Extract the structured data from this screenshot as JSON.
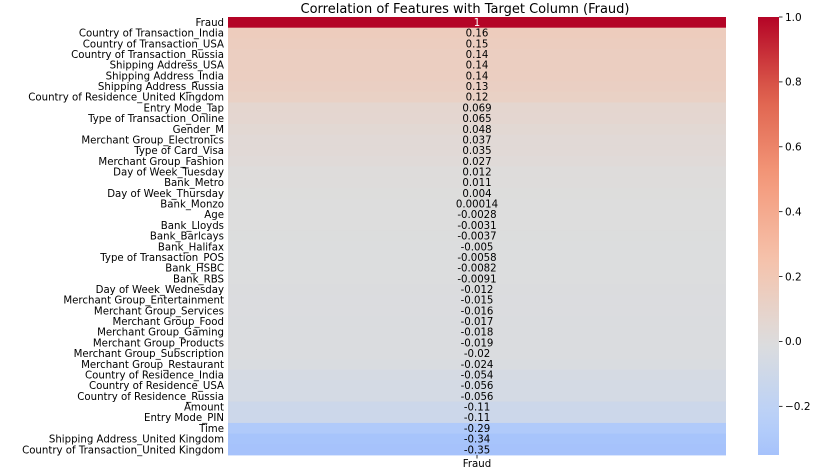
{
  "chart_data": {
    "type": "heatmap",
    "title": "Correlation of Features with Target Column (Fraud)",
    "column_label": "Fraud",
    "rows": [
      {
        "label": "Fraud",
        "value_label": "1",
        "value": 1.0
      },
      {
        "label": "Country of Transaction_India",
        "value_label": "0.16",
        "value": 0.16
      },
      {
        "label": "Country of Transaction_USA",
        "value_label": "0.15",
        "value": 0.15
      },
      {
        "label": "Country of Transaction_Russia",
        "value_label": "0.14",
        "value": 0.14
      },
      {
        "label": "Shipping Address_USA",
        "value_label": "0.14",
        "value": 0.14
      },
      {
        "label": "Shipping Address_India",
        "value_label": "0.14",
        "value": 0.14
      },
      {
        "label": "Shipping Address_Russia",
        "value_label": "0.13",
        "value": 0.13
      },
      {
        "label": "Country of Residence_United Kingdom",
        "value_label": "0.12",
        "value": 0.12
      },
      {
        "label": "Entry Mode_Tap",
        "value_label": "0.069",
        "value": 0.069
      },
      {
        "label": "Type of Transaction_Online",
        "value_label": "0.065",
        "value": 0.065
      },
      {
        "label": "Gender_M",
        "value_label": "0.048",
        "value": 0.048
      },
      {
        "label": "Merchant Group_Electronics",
        "value_label": "0.037",
        "value": 0.037
      },
      {
        "label": "Type of Card_Visa",
        "value_label": "0.035",
        "value": 0.035
      },
      {
        "label": "Merchant Group_Fashion",
        "value_label": "0.027",
        "value": 0.027
      },
      {
        "label": "Day of Week_Tuesday",
        "value_label": "0.012",
        "value": 0.012
      },
      {
        "label": "Bank_Metro",
        "value_label": "0.011",
        "value": 0.011
      },
      {
        "label": "Day of Week_Thursday",
        "value_label": "0.004",
        "value": 0.004
      },
      {
        "label": "Bank_Monzo",
        "value_label": "0.00014",
        "value": 0.00014
      },
      {
        "label": "Age",
        "value_label": "-0.0028",
        "value": -0.0028
      },
      {
        "label": "Bank_Lloyds",
        "value_label": "-0.0031",
        "value": -0.0031
      },
      {
        "label": "Bank_Barlcays",
        "value_label": "-0.0037",
        "value": -0.0037
      },
      {
        "label": "Bank_Halifax",
        "value_label": "-0.005",
        "value": -0.005
      },
      {
        "label": "Type of Transaction_POS",
        "value_label": "-0.0058",
        "value": -0.0058
      },
      {
        "label": "Bank_HSBC",
        "value_label": "-0.0082",
        "value": -0.0082
      },
      {
        "label": "Bank_RBS",
        "value_label": "-0.0091",
        "value": -0.0091
      },
      {
        "label": "Day of Week_Wednesday",
        "value_label": "-0.012",
        "value": -0.012
      },
      {
        "label": "Merchant Group_Entertainment",
        "value_label": "-0.015",
        "value": -0.015
      },
      {
        "label": "Merchant Group_Services",
        "value_label": "-0.016",
        "value": -0.016
      },
      {
        "label": "Merchant Group_Food",
        "value_label": "-0.017",
        "value": -0.017
      },
      {
        "label": "Merchant Group_Gaming",
        "value_label": "-0.018",
        "value": -0.018
      },
      {
        "label": "Merchant Group_Products",
        "value_label": "-0.019",
        "value": -0.019
      },
      {
        "label": "Merchant Group_Subscription",
        "value_label": "-0.02",
        "value": -0.02
      },
      {
        "label": "Merchant Group_Restaurant",
        "value_label": "-0.024",
        "value": -0.024
      },
      {
        "label": "Country of Residence_India",
        "value_label": "-0.054",
        "value": -0.054
      },
      {
        "label": "Country of Residence_USA",
        "value_label": "-0.056",
        "value": -0.056
      },
      {
        "label": "Country of Residence_Russia",
        "value_label": "-0.056",
        "value": -0.056
      },
      {
        "label": "Amount",
        "value_label": "-0.11",
        "value": -0.11
      },
      {
        "label": "Entry Mode_PIN",
        "value_label": "-0.11",
        "value": -0.11
      },
      {
        "label": "Time",
        "value_label": "-0.29",
        "value": -0.29
      },
      {
        "label": "Shipping Address_United Kingdom",
        "value_label": "-0.34",
        "value": -0.34
      },
      {
        "label": "Country of Transaction_United Kingdom",
        "value_label": "-0.35",
        "value": -0.35
      }
    ],
    "colorbar": {
      "min": -0.35,
      "max": 1.0,
      "center": 0,
      "ticks": [
        1.0,
        0.8,
        0.6,
        0.4,
        0.2,
        0.0,
        -0.2
      ],
      "tick_labels": [
        "1.0",
        "0.8",
        "0.6",
        "0.4",
        "0.2",
        "0.0",
        "−0.2"
      ]
    },
    "colormap": "coolwarm",
    "grid": false
  }
}
